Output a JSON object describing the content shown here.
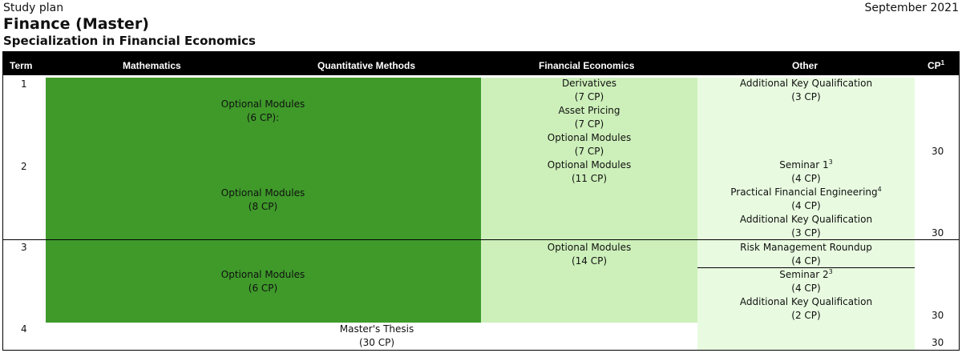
{
  "doc": {
    "label": "Study plan",
    "date": "September 2021",
    "title": "Finance (Master)",
    "subtitle": "Specialization in Financial Economics"
  },
  "header": {
    "term": "Term",
    "mathematics": "Mathematics",
    "quant": "Quantitative Methods",
    "fin": "Financial Economics",
    "other": "Other",
    "cp": "CP",
    "cp_sup": "1"
  },
  "terms": [
    "1",
    "2",
    "3",
    "4"
  ],
  "math_modules": [
    {
      "name": "Optional Modules",
      "cp": "(6 CP):"
    },
    {
      "name": "Optional Modules",
      "cp": "(8 CP)"
    },
    {
      "name": "Optional Modules",
      "cp": "(6 CP)"
    }
  ],
  "fin_modules": [
    {
      "name": "Derivatives",
      "cp": "(7 CP)"
    },
    {
      "name": "Asset Pricing",
      "cp": "(7 CP)"
    },
    {
      "name": "Optional Modules",
      "cp": "(7 CP)"
    },
    {
      "name": "Optional Modules",
      "cp": "(11 CP)"
    },
    {
      "name": "Optional Modules",
      "cp": "(14 CP)"
    }
  ],
  "other_modules": [
    {
      "name": "Additional Key Qualification",
      "sup": "",
      "cp": "(3 CP)"
    },
    {
      "name": "Seminar 1",
      "sup": "3",
      "cp": "(4 CP)"
    },
    {
      "name": "Practical Financial Engineering",
      "sup": "4",
      "cp": "(4 CP)"
    },
    {
      "name": "Additional Key Qualification",
      "sup": "",
      "cp": "(3 CP)"
    },
    {
      "name": "Risk Management Roundup",
      "sup": "",
      "cp": "(4 CP)"
    },
    {
      "name": "Seminar 2",
      "sup": "3",
      "cp": "(4 CP)"
    },
    {
      "name": "Additional Key Qualification",
      "sup": "",
      "cp": "(2 CP)"
    }
  ],
  "thesis": {
    "name": "Master's Thesis",
    "cp": "(30 CP)"
  },
  "cp_totals": [
    "30",
    "30",
    "30",
    "30"
  ],
  "colors": {
    "dark_green": "#3f9a2a",
    "mid_green": "#cdf0ba",
    "light_green": "#e8fbe0",
    "header_bg": "#000000"
  }
}
